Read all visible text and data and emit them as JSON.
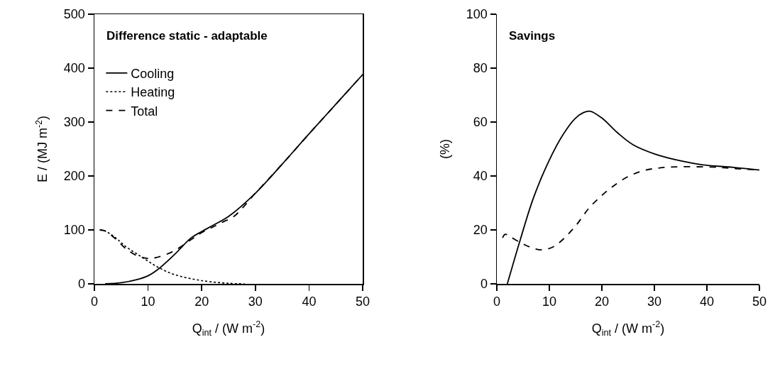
{
  "chart_data": [
    {
      "type": "line",
      "title": "Difference static - adaptable",
      "xlabel": "Q$_{int}$ / (W m$^{-2}$)",
      "ylabel": "E / (MJ m$^{-2}$)",
      "xlim": [
        0,
        50
      ],
      "xticks": [
        0,
        10,
        20,
        30,
        40,
        50
      ],
      "ylim": [
        0,
        500
      ],
      "yticks": [
        0,
        100,
        200,
        300,
        400,
        500
      ],
      "grid": false,
      "legend": "top left",
      "marker": "none",
      "series": [
        {
          "name": "Cooling",
          "color": "#000000",
          "line_style": "solid",
          "x": [
            2,
            5,
            8,
            10,
            12,
            15,
            18,
            20,
            22,
            25,
            30,
            35,
            40,
            45,
            50
          ],
          "values": [
            0,
            2,
            8,
            15,
            28,
            55,
            85,
            97,
            108,
            125,
            168,
            222,
            278,
            333,
            388
          ]
        },
        {
          "name": "Heating",
          "color": "#000000",
          "line_style": "dotted",
          "x": [
            1,
            2,
            4,
            6,
            8,
            10,
            12,
            15,
            20,
            25,
            28
          ],
          "values": [
            100,
            98,
            85,
            68,
            55,
            42,
            30,
            17,
            6,
            1,
            0
          ]
        },
        {
          "name": "Total",
          "color": "#000000",
          "line_style": "dashed",
          "x": [
            1,
            2,
            4,
            6,
            8,
            10,
            12,
            15,
            18,
            20,
            22,
            24,
            26,
            30,
            35,
            40,
            45,
            50
          ],
          "values": [
            100,
            98,
            83,
            64,
            52,
            47,
            50,
            62,
            82,
            95,
            105,
            115,
            125,
            168,
            222,
            278,
            333,
            388
          ]
        }
      ]
    },
    {
      "type": "line",
      "title": "Savings",
      "xlabel": "Q$_{int}$ / (W m$^{-2}$)",
      "ylabel": "(%)",
      "xlim": [
        0,
        50
      ],
      "xticks": [
        0,
        10,
        20,
        30,
        40,
        50
      ],
      "ylim": [
        0,
        100
      ],
      "yticks": [
        0,
        20,
        40,
        60,
        80,
        100
      ],
      "grid": false,
      "legend": false,
      "marker": "none",
      "series": [
        {
          "color": "#000000",
          "line_style": "solid",
          "x": [
            2,
            4.5,
            7,
            9.9,
            12.5,
            14.9,
            16.5,
            17.8,
            20,
            23,
            26,
            30,
            35,
            39,
            45,
            50
          ],
          "values": [
            0,
            16.6,
            32,
            45.5,
            55,
            61.3,
            63.5,
            64,
            61.5,
            56,
            51.5,
            48.2,
            45.6,
            44.2,
            43.2,
            42.2
          ]
        },
        {
          "color": "#000000",
          "line_style": "dashed",
          "x": [
            1.1,
            1.6,
            2.5,
            4.5,
            6.5,
            8.5,
            10.5,
            12.2,
            15,
            17.6,
            20,
            22,
            25,
            28,
            31,
            34.7,
            41,
            45,
            50
          ],
          "values": [
            17.1,
            18.4,
            17.5,
            15.3,
            13.5,
            12.6,
            13.5,
            15.8,
            21.5,
            28.2,
            32.8,
            36,
            39.8,
            42,
            43,
            43.4,
            43.3,
            42.8,
            42.2
          ]
        }
      ]
    }
  ]
}
